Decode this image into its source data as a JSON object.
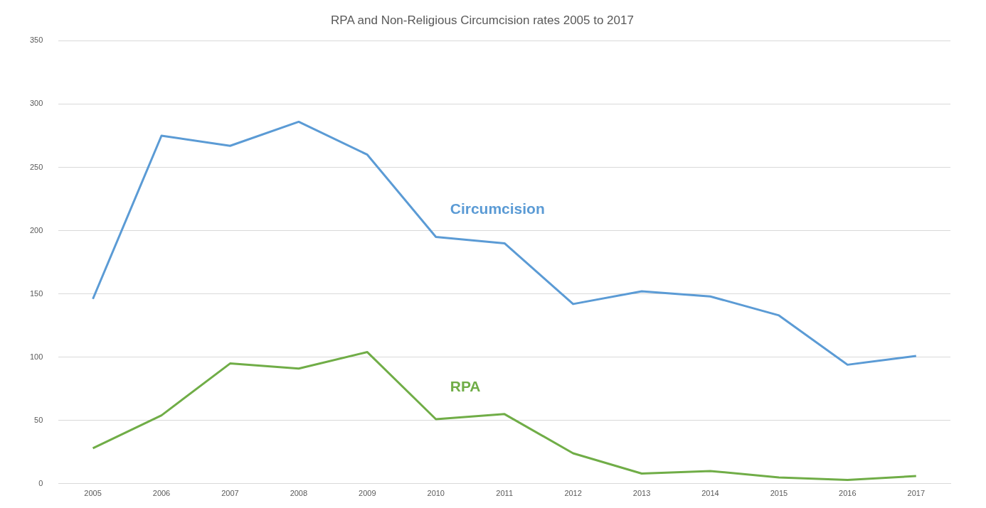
{
  "chart_data": {
    "type": "line",
    "title": "RPA and Non-Religious Circumcision rates 2005 to 2017",
    "categories": [
      "2005",
      "2006",
      "2007",
      "2008",
      "2009",
      "2010",
      "2011",
      "2012",
      "2013",
      "2014",
      "2015",
      "2016",
      "2017"
    ],
    "series": [
      {
        "name": "Circumcision",
        "color": "#5b9bd5",
        "values": [
          146,
          275,
          267,
          286,
          260,
          195,
          190,
          142,
          152,
          148,
          133,
          94,
          101
        ]
      },
      {
        "name": "RPA",
        "color": "#70ad47",
        "values": [
          28,
          54,
          95,
          91,
          104,
          51,
          55,
          24,
          8,
          10,
          5,
          3,
          6
        ]
      }
    ],
    "ylim": [
      0,
      350
    ],
    "yticks": [
      0,
      50,
      100,
      150,
      200,
      250,
      300,
      350
    ],
    "grid": "y",
    "legend": false,
    "marker": "none",
    "line_style": "solid"
  }
}
